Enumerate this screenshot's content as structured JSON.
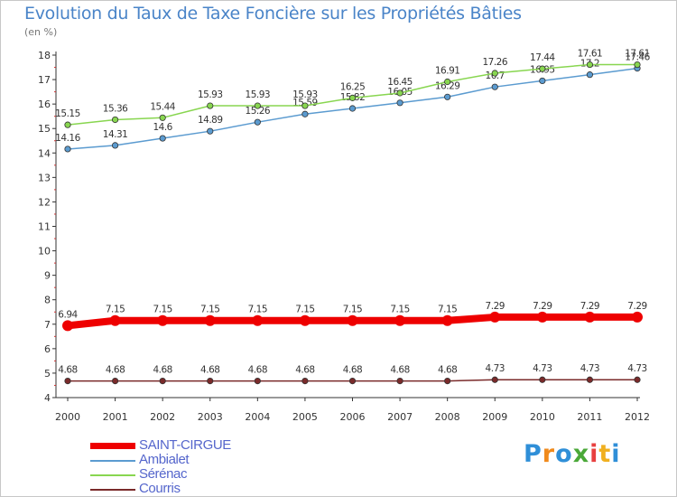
{
  "title": "Evolution du Taux de Taxe Foncière sur les Propriétés Bâties",
  "unit_label": "(en %)",
  "brand": {
    "letters": [
      "P",
      "r",
      "o",
      "x",
      "i",
      "t",
      "i"
    ],
    "colors": [
      "#2f8fd8",
      "#f08a1c",
      "#2f8fd8",
      "#4aa838",
      "#e84040",
      "#f0b020",
      "#2f8fd8"
    ]
  },
  "chart_data": {
    "type": "line",
    "title": "Evolution du Taux de Taxe Foncière sur les Propriétés Bâties",
    "ylabel": "(en %)",
    "xlabel": "",
    "x": [
      "2000",
      "2001",
      "2002",
      "2003",
      "2004",
      "2005",
      "2006",
      "2007",
      "2008",
      "2009",
      "2010",
      "2011",
      "2012"
    ],
    "ylim": [
      4,
      18
    ],
    "yticks": [
      "4",
      "5",
      "6",
      "7",
      "8",
      "9",
      "10",
      "11",
      "12",
      "13",
      "14",
      "15",
      "16",
      "17",
      "18"
    ],
    "grid": false,
    "series": [
      {
        "name": "SAINT-CIRGUE",
        "color": "#ee0000",
        "thick": true,
        "values": [
          6.94,
          7.15,
          7.15,
          7.15,
          7.15,
          7.15,
          7.15,
          7.15,
          7.15,
          7.29,
          7.29,
          7.29,
          7.29
        ],
        "labels": [
          "6.94",
          "7.15",
          "7.15",
          "7.15",
          "7.15",
          "7.15",
          "7.15",
          "7.15",
          "7.15",
          "7.29",
          "7.29",
          "7.29",
          "7.29"
        ]
      },
      {
        "name": "Ambialet",
        "color": "#5b9bd0",
        "thick": false,
        "values": [
          14.16,
          14.31,
          14.6,
          14.89,
          15.26,
          15.59,
          15.82,
          16.05,
          16.29,
          16.7,
          16.95,
          17.2,
          17.46
        ],
        "labels": [
          "14.16",
          "14.31",
          "14.6",
          "14.89",
          "15.26",
          "15.59",
          "15.82",
          "16.05",
          "16.29",
          "16.7",
          "16.95",
          "17.2",
          "17.46"
        ]
      },
      {
        "name": "Sérénac",
        "color": "#88d650",
        "thick": false,
        "values": [
          15.15,
          15.36,
          15.44,
          15.93,
          15.93,
          15.93,
          16.25,
          16.45,
          16.91,
          17.26,
          17.44,
          17.61,
          17.61
        ],
        "labels": [
          "15.15",
          "15.36",
          "15.44",
          "15.93",
          "15.93",
          "15.93",
          "16.25",
          "16.45",
          "16.91",
          "17.26",
          "17.44",
          "17.61",
          "17.61"
        ]
      },
      {
        "name": "Courris",
        "color": "#7a2a2a",
        "thick": false,
        "values": [
          4.68,
          4.68,
          4.68,
          4.68,
          4.68,
          4.68,
          4.68,
          4.68,
          4.68,
          4.73,
          4.73,
          4.73,
          4.73
        ],
        "labels": [
          "4.68",
          "4.68",
          "4.68",
          "4.68",
          "4.68",
          "4.68",
          "4.68",
          "4.68",
          "4.68",
          "4.73",
          "4.73",
          "4.73",
          "4.73"
        ]
      }
    ]
  }
}
